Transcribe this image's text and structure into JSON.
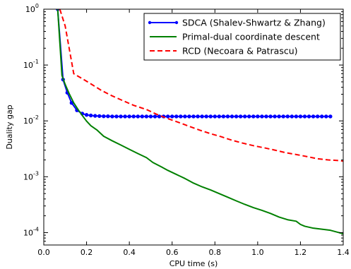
{
  "chart_data": {
    "type": "line",
    "title": "",
    "xlabel": "CPU time (s)",
    "ylabel": "Duality gap",
    "xlim": [
      0,
      1.4
    ],
    "ylim": [
      6e-05,
      1
    ],
    "yscale": "log",
    "grid": false,
    "legend_position": "top-right",
    "x_ticks": [
      {
        "value": 0.0,
        "label": "0.0"
      },
      {
        "value": 0.2,
        "label": "0.2"
      },
      {
        "value": 0.4,
        "label": "0.4"
      },
      {
        "value": 0.6,
        "label": "0.6"
      },
      {
        "value": 0.8,
        "label": "0.8"
      },
      {
        "value": 1.0,
        "label": "1.0"
      },
      {
        "value": 1.2,
        "label": "1.2"
      },
      {
        "value": 1.4,
        "label": "1.4"
      }
    ],
    "y_ticks": [
      {
        "value": 0.0001,
        "base": "10",
        "exp": "-4"
      },
      {
        "value": 0.001,
        "base": "10",
        "exp": "-3"
      },
      {
        "value": 0.01,
        "base": "10",
        "exp": "-2"
      },
      {
        "value": 0.1,
        "base": "10",
        "exp": "-1"
      },
      {
        "value": 1,
        "base": "10",
        "exp": "0"
      }
    ],
    "series": [
      {
        "name": "SDCA (Shalev-Shwartz & Zhang)",
        "color": "#0000ff",
        "style": "solid-markers",
        "x": [
          0.065,
          0.09,
          0.11,
          0.13,
          0.155,
          0.18,
          0.2,
          0.22,
          0.24,
          0.26,
          0.28,
          0.3,
          0.32,
          0.34,
          0.36,
          0.38,
          0.4,
          0.42,
          0.44,
          0.46,
          0.48,
          0.5,
          0.52,
          0.54,
          0.56,
          0.58,
          0.6,
          0.62,
          0.64,
          0.66,
          0.68,
          0.7,
          0.72,
          0.74,
          0.76,
          0.78,
          0.8,
          0.82,
          0.84,
          0.86,
          0.88,
          0.9,
          0.92,
          0.94,
          0.96,
          0.98,
          1.0,
          1.02,
          1.04,
          1.06,
          1.08,
          1.1,
          1.12,
          1.14,
          1.16,
          1.18,
          1.2,
          1.22,
          1.24,
          1.26,
          1.28,
          1.3,
          1.32,
          1.34
        ],
        "y": [
          1.0,
          0.055,
          0.032,
          0.021,
          0.0155,
          0.0135,
          0.0128,
          0.0125,
          0.0123,
          0.0122,
          0.0121,
          0.0121,
          0.012,
          0.012,
          0.012,
          0.012,
          0.012,
          0.012,
          0.012,
          0.012,
          0.012,
          0.012,
          0.012,
          0.012,
          0.012,
          0.012,
          0.012,
          0.012,
          0.012,
          0.012,
          0.012,
          0.012,
          0.012,
          0.012,
          0.012,
          0.012,
          0.012,
          0.012,
          0.012,
          0.012,
          0.012,
          0.012,
          0.012,
          0.012,
          0.012,
          0.012,
          0.012,
          0.012,
          0.012,
          0.012,
          0.012,
          0.012,
          0.012,
          0.012,
          0.012,
          0.012,
          0.012,
          0.012,
          0.012,
          0.012,
          0.012,
          0.012,
          0.012,
          0.012
        ]
      },
      {
        "name": "Primal-dual coordinate descent",
        "color": "#008000",
        "style": "solid",
        "x": [
          0.065,
          0.085,
          0.1,
          0.12,
          0.14,
          0.16,
          0.18,
          0.2,
          0.22,
          0.25,
          0.28,
          0.32,
          0.36,
          0.4,
          0.44,
          0.48,
          0.51,
          0.55,
          0.58,
          0.62,
          0.66,
          0.7,
          0.74,
          0.78,
          0.82,
          0.86,
          0.9,
          0.94,
          0.98,
          1.02,
          1.06,
          1.1,
          1.14,
          1.18,
          1.2,
          1.22,
          1.26,
          1.3,
          1.34,
          1.38,
          1.4
        ],
        "y": [
          1.0,
          0.065,
          0.045,
          0.03,
          0.021,
          0.016,
          0.0125,
          0.0099,
          0.0082,
          0.0068,
          0.0053,
          0.0044,
          0.0037,
          0.0031,
          0.0026,
          0.0022,
          0.0018,
          0.0015,
          0.0013,
          0.0011,
          0.00093,
          0.00077,
          0.00066,
          0.00058,
          0.0005,
          0.00043,
          0.00037,
          0.00032,
          0.00028,
          0.00025,
          0.00022,
          0.00019,
          0.00017,
          0.00016,
          0.00014,
          0.00013,
          0.00012,
          0.000115,
          0.00011,
          0.0001,
          9.5e-05
        ]
      },
      {
        "name": "RCD (Necoara & Patrascu)",
        "color": "#ff0000",
        "style": "dashed",
        "x": [
          0.075,
          0.1,
          0.14,
          0.18,
          0.22,
          0.27,
          0.32,
          0.37,
          0.42,
          0.48,
          0.53,
          0.58,
          0.63,
          0.68,
          0.73,
          0.78,
          0.83,
          0.88,
          0.93,
          0.98,
          1.03,
          1.08,
          1.13,
          1.18,
          1.23,
          1.28,
          1.33,
          1.38,
          1.4
        ],
        "y": [
          1.0,
          0.5,
          0.07,
          0.057,
          0.046,
          0.035,
          0.028,
          0.023,
          0.019,
          0.016,
          0.013,
          0.011,
          0.0094,
          0.008,
          0.0068,
          0.0059,
          0.0052,
          0.0045,
          0.004,
          0.0036,
          0.0033,
          0.003,
          0.0027,
          0.0025,
          0.0023,
          0.0021,
          0.002,
          0.00195,
          0.0019
        ]
      }
    ]
  }
}
